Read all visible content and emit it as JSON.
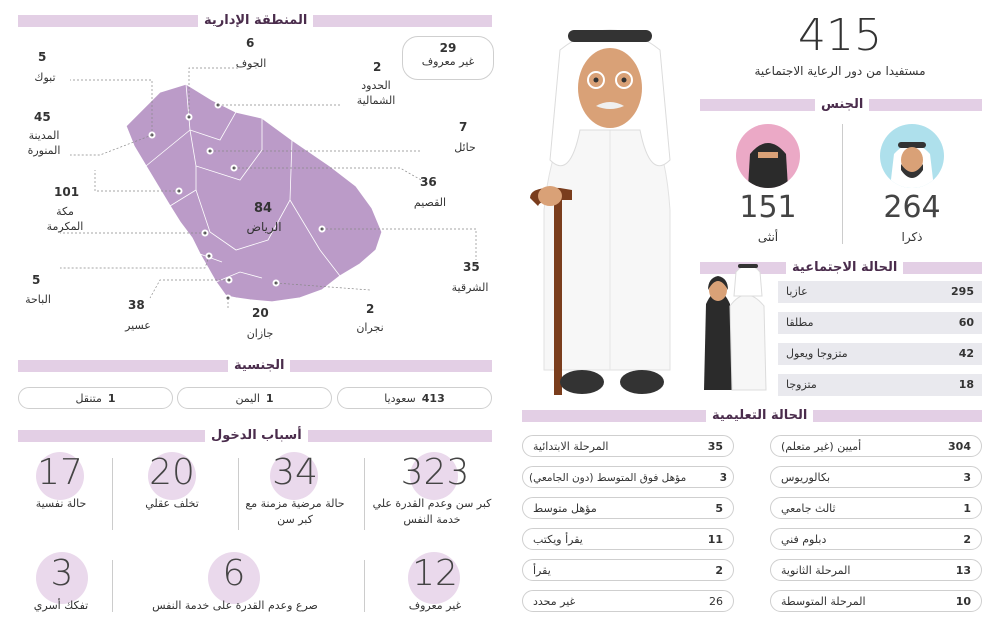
{
  "admin_region": {
    "title": "المنطقة الإدارية",
    "unknown": {
      "value": "29",
      "label": "غير معروف"
    },
    "regions": [
      {
        "value": "5",
        "name": "تبوك"
      },
      {
        "value": "6",
        "name": "الجوف"
      },
      {
        "value": "2",
        "name": "الحدود الشمالية"
      },
      {
        "value": "45",
        "name": "المدينة المنورة"
      },
      {
        "value": "7",
        "name": "حائل"
      },
      {
        "value": "36",
        "name": "القصيم"
      },
      {
        "value": "101",
        "name": "مكة المكرمة"
      },
      {
        "value": "84",
        "name": "الرياض"
      },
      {
        "value": "35",
        "name": "الشرقية"
      },
      {
        "value": "5",
        "name": "الباحة"
      },
      {
        "value": "38",
        "name": "عسير"
      },
      {
        "value": "20",
        "name": "جازان"
      },
      {
        "value": "2",
        "name": "نجران"
      }
    ]
  },
  "nationality": {
    "title": "الجنسية",
    "items": [
      {
        "value": "413",
        "label": "سعوديا"
      },
      {
        "value": "1",
        "label": "اليمن"
      },
      {
        "value": "1",
        "label": "متنقل"
      }
    ]
  },
  "entry_reasons": {
    "title": "أسباب الدخول",
    "items": [
      {
        "value": "323",
        "label": "كبر سن وعدم القدرة علي خدمة النفس"
      },
      {
        "value": "34",
        "label": "حالة مرضية مزمنة مع كبر سن"
      },
      {
        "value": "20",
        "label": "تخلف عقلي"
      },
      {
        "value": "17",
        "label": "حالة نفسية"
      },
      {
        "value": "12",
        "label": "غير معروف"
      },
      {
        "value": "6",
        "label": "صرع وعدم القدرة على خدمة النفس"
      },
      {
        "value": "3",
        "label": "تفكك أسري"
      }
    ]
  },
  "beneficiaries": {
    "value": "415",
    "label": "مستفيدا من دور الرعاية الاجتماعية"
  },
  "gender": {
    "title": "الجنس",
    "male": {
      "value": "264",
      "label": "ذكرا"
    },
    "female": {
      "value": "151",
      "label": "أنثى"
    }
  },
  "social_status": {
    "title": "الحالة الاجتماعية",
    "items": [
      {
        "value": "295",
        "label": "عازبا"
      },
      {
        "value": "60",
        "label": "مطلقا"
      },
      {
        "value": "42",
        "label": "متزوجا ويعول"
      },
      {
        "value": "18",
        "label": "متزوجا"
      }
    ]
  },
  "education": {
    "title": "الحالة التعليمية",
    "right": [
      {
        "value": "304",
        "label": "أميين (غير متعلم)"
      },
      {
        "value": "3",
        "label": "بكالوريوس"
      },
      {
        "value": "1",
        "label": "ثالث جامعي"
      },
      {
        "value": "2",
        "label": "دبلوم فني"
      },
      {
        "value": "13",
        "label": "المرحلة الثانوية"
      },
      {
        "value": "10",
        "label": "المرحلة المتوسطة"
      }
    ],
    "left": [
      {
        "value": "35",
        "label": "المرحلة الابتدائية"
      },
      {
        "value": "3",
        "label": "مؤهل فوق المتوسط (دون الجامعي)"
      },
      {
        "value": "5",
        "label": "مؤهل متوسط"
      },
      {
        "value": "11",
        "label": "يقرأ ويكتب"
      },
      {
        "value": "2",
        "label": "يقرأ"
      },
      {
        "value": "26",
        "label": "غير محدد"
      }
    ]
  },
  "colors": {
    "accent": "#e3cfe5",
    "map": "#bb9bc8",
    "circle": "#ead9ec"
  }
}
